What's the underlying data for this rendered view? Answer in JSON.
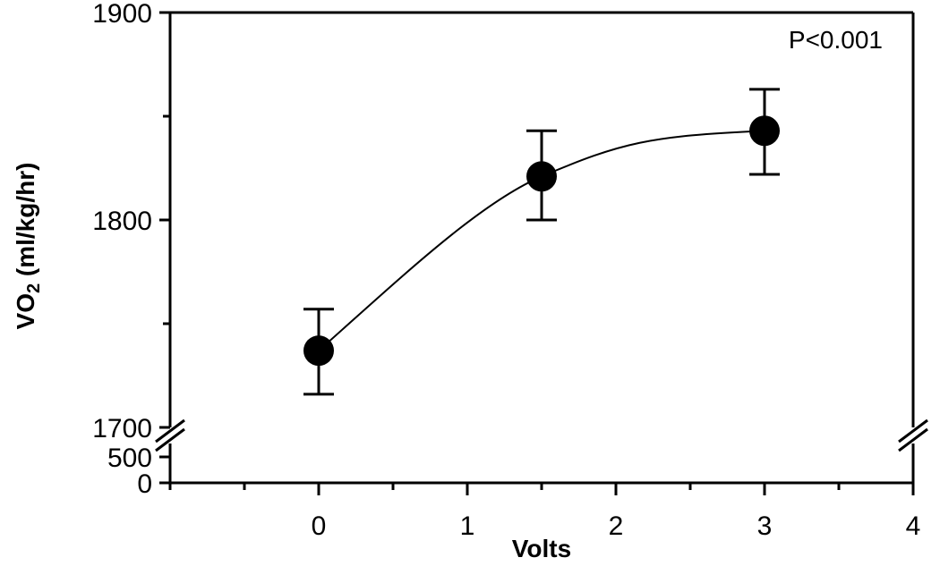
{
  "chart_data": {
    "type": "scatter",
    "title": "",
    "xlabel": "Volts",
    "ylabel_main": "VO",
    "ylabel_sub": "2",
    "ylabel_rest": " (ml/kg/hr)",
    "annotation": "P<0.001",
    "xlim": [
      -1,
      4
    ],
    "x_ticks": [
      0,
      1,
      2,
      3,
      4
    ],
    "x_tick_labels": [
      "0",
      "1",
      "2",
      "3",
      "4"
    ],
    "ylim_upper": [
      1700,
      1900
    ],
    "y_ticks_upper": [
      1700,
      1800,
      1900
    ],
    "y_tick_labels_upper": [
      "1700",
      "1800",
      "1900"
    ],
    "y_ticks_lower": [
      0,
      500
    ],
    "y_tick_labels_lower": [
      "0",
      "500"
    ],
    "y_axis_break": true,
    "grid": false,
    "series": [
      {
        "x": [
          0,
          1.5,
          3
        ],
        "y": [
          1737,
          1821,
          1843
        ],
        "error_lower": [
          1716,
          1800,
          1822
        ],
        "error_upper": [
          1757,
          1843,
          1863
        ],
        "marker": "filled-circle",
        "fit_curve": true
      }
    ]
  }
}
